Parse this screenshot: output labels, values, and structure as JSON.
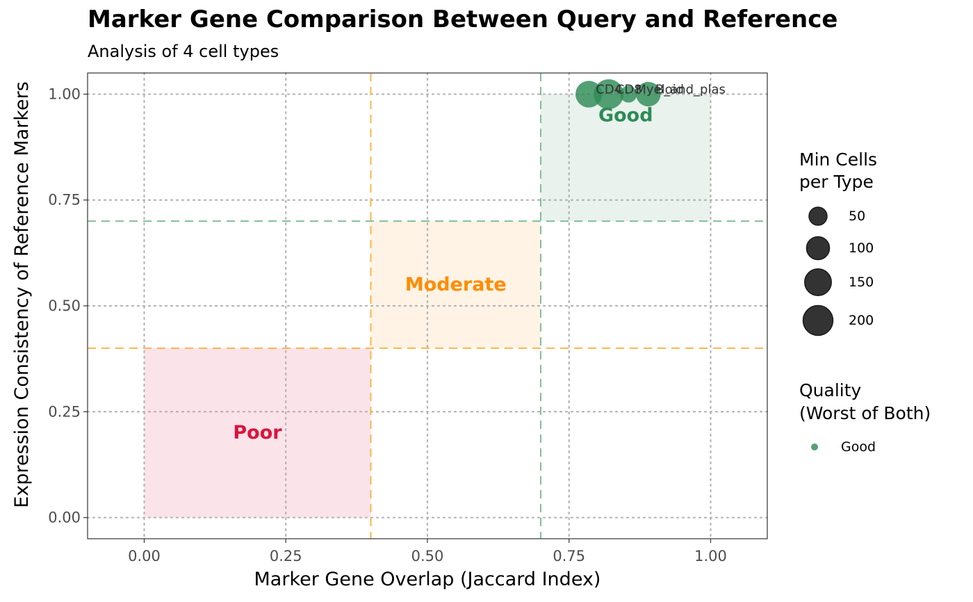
{
  "chart_data": {
    "type": "scatter",
    "title": "Marker Gene Comparison Between Query and Reference",
    "subtitle": "Analysis of 4 cell types",
    "xlabel": "Marker Gene Overlap (Jaccard Index)",
    "ylabel": "Expression Consistency of Reference Markers",
    "xlim": [
      -0.1,
      1.1
    ],
    "ylim": [
      -0.05,
      1.05
    ],
    "x_ticks": [
      "0.00",
      "0.25",
      "0.50",
      "0.75",
      "1.00"
    ],
    "y_ticks": [
      "0.00",
      "0.25",
      "0.50",
      "0.75",
      "1.00"
    ],
    "grid": "dotted",
    "zones": [
      {
        "label": "Poor",
        "x": [
          0,
          0.4
        ],
        "y": [
          0,
          0.4
        ],
        "fill": "#fbe3ea",
        "color": "#dc143c",
        "label_at": [
          0.2,
          0.2
        ]
      },
      {
        "label": "Moderate",
        "x": [
          0.4,
          0.7
        ],
        "y": [
          0.4,
          0.7
        ],
        "fill": "#fff3e5",
        "color": "#ff8c00",
        "label_at": [
          0.55,
          0.55
        ]
      },
      {
        "label": "Good",
        "x": [
          0.7,
          1.0
        ],
        "y": [
          0.7,
          1.0
        ],
        "fill": "#e9f2ec",
        "color": "#2e8b57",
        "label_at": [
          0.85,
          0.95
        ]
      }
    ],
    "thresholds": [
      {
        "axis": "x",
        "value": 0.4,
        "color": "#ffb347"
      },
      {
        "axis": "x",
        "value": 0.7,
        "color": "#7fbf9a"
      },
      {
        "axis": "y",
        "value": 0.4,
        "color": "#ffb347"
      },
      {
        "axis": "y",
        "value": 0.7,
        "color": "#7fbf9a"
      }
    ],
    "points": [
      {
        "label": "CD4",
        "x": 0.785,
        "y": 1.0,
        "min_cells": 150,
        "quality": "Good"
      },
      {
        "label": "CD8",
        "x": 0.82,
        "y": 1.0,
        "min_cells": 200,
        "quality": "Good"
      },
      {
        "label": "Myeloid",
        "x": 0.855,
        "y": 1.0,
        "min_cells": 40,
        "quality": "Good"
      },
      {
        "label": "B_and_plas",
        "x": 0.89,
        "y": 1.0,
        "min_cells": 120,
        "quality": "Good"
      }
    ],
    "legend_size": {
      "title_line1": "Min Cells",
      "title_line2": "per Type",
      "entries": [
        {
          "label": "50",
          "value": 50
        },
        {
          "label": "100",
          "value": 100
        },
        {
          "label": "150",
          "value": 150
        },
        {
          "label": "200",
          "value": 200
        }
      ]
    },
    "legend_color": {
      "title_line1": "Quality",
      "title_line2": "(Worst of Both)",
      "entries": [
        {
          "label": "Good",
          "color": "#2e8b57"
        }
      ]
    },
    "legend_position": "right"
  }
}
